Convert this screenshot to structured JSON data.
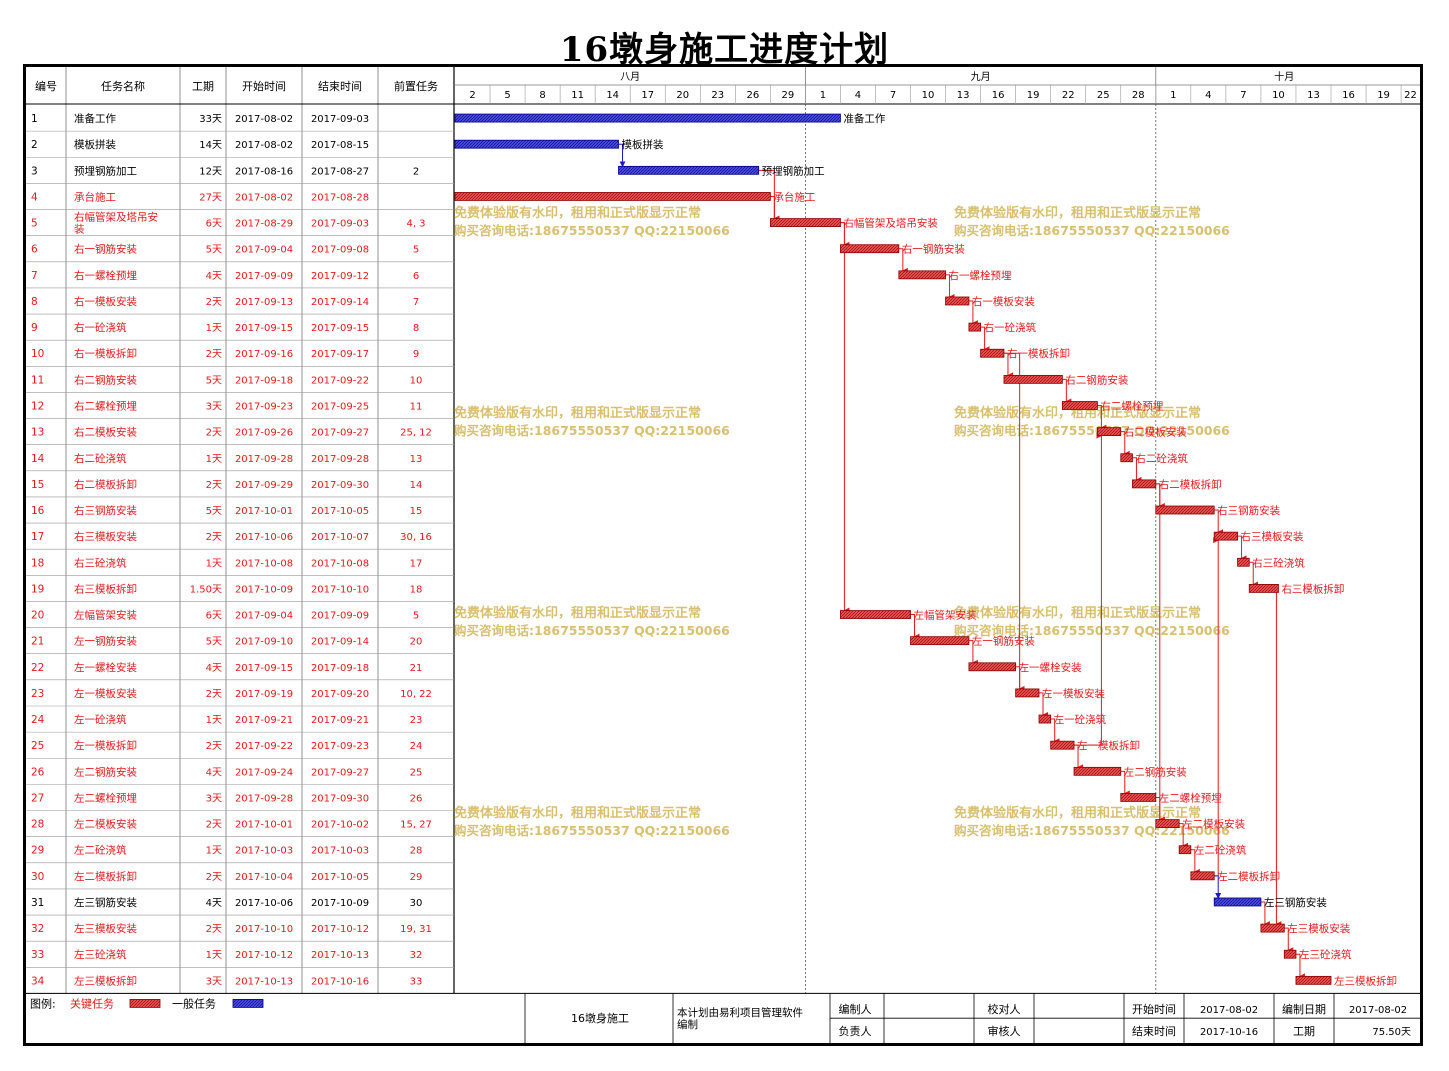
{
  "title": "16墩身施工进度计划",
  "table": {
    "headers": [
      "编号",
      "任务名称",
      "工期",
      "开始时间",
      "结束时间",
      "前置任务"
    ],
    "rows": [
      {
        "id": "1",
        "name": "准备工作",
        "dur": "33天",
        "start": "2017-08-02",
        "end": "2017-09-03",
        "pred": "",
        "critical": false,
        "s": 1,
        "e": 33,
        "deps": []
      },
      {
        "id": "2",
        "name": "模板拼装",
        "dur": "14天",
        "start": "2017-08-02",
        "end": "2017-08-15",
        "pred": "",
        "critical": false,
        "s": 1,
        "e": 14,
        "deps": []
      },
      {
        "id": "3",
        "name": "预埋钢筋加工",
        "dur": "12天",
        "start": "2017-08-16",
        "end": "2017-08-27",
        "pred": "2",
        "critical": false,
        "s": 15,
        "e": 26,
        "deps": [
          2
        ]
      },
      {
        "id": "4",
        "name": "承台施工",
        "dur": "27天",
        "start": "2017-08-02",
        "end": "2017-08-28",
        "pred": "",
        "critical": true,
        "s": 1,
        "e": 27,
        "deps": []
      },
      {
        "id": "5",
        "name": "右幅管架及塔吊安装",
        "dur": "6天",
        "start": "2017-08-29",
        "end": "2017-09-03",
        "pred": "4, 3",
        "critical": true,
        "s": 28,
        "e": 33,
        "deps": [
          4,
          3
        ]
      },
      {
        "id": "6",
        "name": "右一钢筋安装",
        "dur": "5天",
        "start": "2017-09-04",
        "end": "2017-09-08",
        "pred": "5",
        "critical": true,
        "s": 34,
        "e": 38,
        "deps": [
          5
        ]
      },
      {
        "id": "7",
        "name": "右一螺栓预埋",
        "dur": "4天",
        "start": "2017-09-09",
        "end": "2017-09-12",
        "pred": "6",
        "critical": true,
        "s": 39,
        "e": 42,
        "deps": [
          6
        ]
      },
      {
        "id": "8",
        "name": "右一模板安装",
        "dur": "2天",
        "start": "2017-09-13",
        "end": "2017-09-14",
        "pred": "7",
        "critical": true,
        "s": 43,
        "e": 44,
        "deps": [
          7
        ]
      },
      {
        "id": "9",
        "name": "右一砼浇筑",
        "dur": "1天",
        "start": "2017-09-15",
        "end": "2017-09-15",
        "pred": "8",
        "critical": true,
        "s": 45,
        "e": 45,
        "deps": [
          8
        ]
      },
      {
        "id": "10",
        "name": "右一模板拆卸",
        "dur": "2天",
        "start": "2017-09-16",
        "end": "2017-09-17",
        "pred": "9",
        "critical": true,
        "s": 46,
        "e": 47,
        "deps": [
          9
        ]
      },
      {
        "id": "11",
        "name": "右二钢筋安装",
        "dur": "5天",
        "start": "2017-09-18",
        "end": "2017-09-22",
        "pred": "10",
        "critical": true,
        "s": 48,
        "e": 52,
        "deps": [
          10
        ]
      },
      {
        "id": "12",
        "name": "右二螺栓预埋",
        "dur": "3天",
        "start": "2017-09-23",
        "end": "2017-09-25",
        "pred": "11",
        "critical": true,
        "s": 53,
        "e": 55,
        "deps": [
          11
        ]
      },
      {
        "id": "13",
        "name": "右二模板安装",
        "dur": "2天",
        "start": "2017-09-26",
        "end": "2017-09-27",
        "pred": "25, 12",
        "critical": true,
        "s": 56,
        "e": 57,
        "deps": [
          25,
          12
        ]
      },
      {
        "id": "14",
        "name": "右二砼浇筑",
        "dur": "1天",
        "start": "2017-09-28",
        "end": "2017-09-28",
        "pred": "13",
        "critical": true,
        "s": 58,
        "e": 58,
        "deps": [
          13
        ]
      },
      {
        "id": "15",
        "name": "右二模板拆卸",
        "dur": "2天",
        "start": "2017-09-29",
        "end": "2017-09-30",
        "pred": "14",
        "critical": true,
        "s": 59,
        "e": 60,
        "deps": [
          14
        ]
      },
      {
        "id": "16",
        "name": "右三钢筋安装",
        "dur": "5天",
        "start": "2017-10-01",
        "end": "2017-10-05",
        "pred": "15",
        "critical": true,
        "s": 61,
        "e": 65,
        "deps": [
          15
        ]
      },
      {
        "id": "17",
        "name": "右三模板安装",
        "dur": "2天",
        "start": "2017-10-06",
        "end": "2017-10-07",
        "pred": "30, 16",
        "critical": true,
        "s": 66,
        "e": 67,
        "deps": [
          30,
          16
        ]
      },
      {
        "id": "18",
        "name": "右三砼浇筑",
        "dur": "1天",
        "start": "2017-10-08",
        "end": "2017-10-08",
        "pred": "17",
        "critical": true,
        "s": 68,
        "e": 68,
        "deps": [
          17
        ]
      },
      {
        "id": "19",
        "name": "右三模板拆卸",
        "dur": "1.50天",
        "start": "2017-10-09",
        "end": "2017-10-10",
        "pred": "18",
        "critical": true,
        "s": 69,
        "e": 70.5,
        "deps": [
          18
        ]
      },
      {
        "id": "20",
        "name": "左幅管架安装",
        "dur": "6天",
        "start": "2017-09-04",
        "end": "2017-09-09",
        "pred": "5",
        "critical": true,
        "s": 34,
        "e": 39,
        "deps": [
          5
        ]
      },
      {
        "id": "21",
        "name": "左一钢筋安装",
        "dur": "5天",
        "start": "2017-09-10",
        "end": "2017-09-14",
        "pred": "20",
        "critical": true,
        "s": 40,
        "e": 44,
        "deps": [
          20
        ]
      },
      {
        "id": "22",
        "name": "左一螺栓安装",
        "dur": "4天",
        "start": "2017-09-15",
        "end": "2017-09-18",
        "pred": "21",
        "critical": true,
        "s": 45,
        "e": 48,
        "deps": [
          21
        ]
      },
      {
        "id": "23",
        "name": "左一模板安装",
        "dur": "2天",
        "start": "2017-09-19",
        "end": "2017-09-20",
        "pred": "10, 22",
        "critical": true,
        "s": 49,
        "e": 50,
        "deps": [
          10,
          22
        ]
      },
      {
        "id": "24",
        "name": "左一砼浇筑",
        "dur": "1天",
        "start": "2017-09-21",
        "end": "2017-09-21",
        "pred": "23",
        "critical": true,
        "s": 51,
        "e": 51,
        "deps": [
          23
        ]
      },
      {
        "id": "25",
        "name": "左一模板拆卸",
        "dur": "2天",
        "start": "2017-09-22",
        "end": "2017-09-23",
        "pred": "24",
        "critical": true,
        "s": 52,
        "e": 53,
        "deps": [
          24
        ]
      },
      {
        "id": "26",
        "name": "左二钢筋安装",
        "dur": "4天",
        "start": "2017-09-24",
        "end": "2017-09-27",
        "pred": "25",
        "critical": true,
        "s": 54,
        "e": 57,
        "deps": [
          25
        ]
      },
      {
        "id": "27",
        "name": "左二螺栓预埋",
        "dur": "3天",
        "start": "2017-09-28",
        "end": "2017-09-30",
        "pred": "26",
        "critical": true,
        "s": 58,
        "e": 60,
        "deps": [
          26
        ]
      },
      {
        "id": "28",
        "name": "左二模板安装",
        "dur": "2天",
        "start": "2017-10-01",
        "end": "2017-10-02",
        "pred": "15, 27",
        "critical": true,
        "s": 61,
        "e": 62,
        "deps": [
          15,
          27
        ]
      },
      {
        "id": "29",
        "name": "左二砼浇筑",
        "dur": "1天",
        "start": "2017-10-03",
        "end": "2017-10-03",
        "pred": "28",
        "critical": true,
        "s": 63,
        "e": 63,
        "deps": [
          28
        ]
      },
      {
        "id": "30",
        "name": "左二模板拆卸",
        "dur": "2天",
        "start": "2017-10-04",
        "end": "2017-10-05",
        "pred": "29",
        "critical": true,
        "s": 64,
        "e": 65,
        "deps": [
          29
        ]
      },
      {
        "id": "31",
        "name": "左三钢筋安装",
        "dur": "4天",
        "start": "2017-10-06",
        "end": "2017-10-09",
        "pred": "30",
        "critical": false,
        "s": 66,
        "e": 69,
        "deps": [
          30
        ]
      },
      {
        "id": "32",
        "name": "左三模板安装",
        "dur": "2天",
        "start": "2017-10-10",
        "end": "2017-10-12",
        "pred": "19, 31",
        "critical": true,
        "s": 70,
        "e": 71,
        "deps": [
          19,
          31
        ]
      },
      {
        "id": "33",
        "name": "左三砼浇筑",
        "dur": "1天",
        "start": "2017-10-12",
        "end": "2017-10-13",
        "pred": "32",
        "critical": true,
        "s": 72,
        "e": 72,
        "deps": [
          32
        ]
      },
      {
        "id": "34",
        "name": "左三模板拆卸",
        "dur": "3天",
        "start": "2017-10-13",
        "end": "2017-10-16",
        "pred": "33",
        "critical": true,
        "s": 73,
        "e": 75,
        "deps": [
          33
        ]
      }
    ]
  },
  "timeline": {
    "months": [
      {
        "label": "八月",
        "start_day": 1,
        "end_day": 31
      },
      {
        "label": "九月",
        "start_day": 31,
        "end_day": 61
      },
      {
        "label": "十月",
        "start_day": 61,
        "end_day": 83
      }
    ],
    "ticks": [
      {
        "label": "2",
        "day": 1
      },
      {
        "label": "5",
        "day": 4
      },
      {
        "label": "8",
        "day": 7
      },
      {
        "label": "11",
        "day": 10
      },
      {
        "label": "14",
        "day": 13
      },
      {
        "label": "17",
        "day": 16
      },
      {
        "label": "20",
        "day": 19
      },
      {
        "label": "23",
        "day": 22
      },
      {
        "label": "26",
        "day": 25
      },
      {
        "label": "29",
        "day": 28
      },
      {
        "label": "1",
        "day": 31
      },
      {
        "label": "4",
        "day": 34
      },
      {
        "label": "7",
        "day": 37
      },
      {
        "label": "10",
        "day": 40
      },
      {
        "label": "13",
        "day": 43
      },
      {
        "label": "16",
        "day": 46
      },
      {
        "label": "19",
        "day": 49
      },
      {
        "label": "22",
        "day": 52
      },
      {
        "label": "25",
        "day": 55
      },
      {
        "label": "28",
        "day": 58
      },
      {
        "label": "1",
        "day": 61
      },
      {
        "label": "4",
        "day": 64
      },
      {
        "label": "7",
        "day": 67
      },
      {
        "label": "10",
        "day": 70
      },
      {
        "label": "13",
        "day": 73
      },
      {
        "label": "16",
        "day": 76
      },
      {
        "label": "19",
        "day": 79
      },
      {
        "label": "22",
        "day": 82
      }
    ]
  },
  "watermark": {
    "line1": "免费体验版有水印，租用和正式版显示正常",
    "line2": "购买咨询电话:18675550537 QQ:22150066"
  },
  "colors": {
    "critical": "#e31a1c",
    "critical_fill": "#e85050",
    "normal": "#1a1acc",
    "normal_fill": "#4a4ae0",
    "watermark": "#d8c070",
    "grid": "#999999"
  },
  "footer": {
    "legend_label": "图例:",
    "legend_critical": "关键任务",
    "legend_normal": "一般任务",
    "project_name": "16墩身施工",
    "software_note": "本计划由易利项目管理软件编制",
    "compiler_label": "编制人",
    "compiler_value": "",
    "proofreader_label": "校对人",
    "proofreader_value": "",
    "responsible_label": "负责人",
    "responsible_value": "",
    "reviewer_label": "审核人",
    "reviewer_value": "",
    "start_label": "开始时间",
    "start_value": "2017-08-02",
    "end_label": "结束时间",
    "end_value": "2017-10-16",
    "date_label": "编制日期",
    "date_value": "2017-08-02",
    "duration_label": "工期",
    "duration_value": "75.50天"
  }
}
